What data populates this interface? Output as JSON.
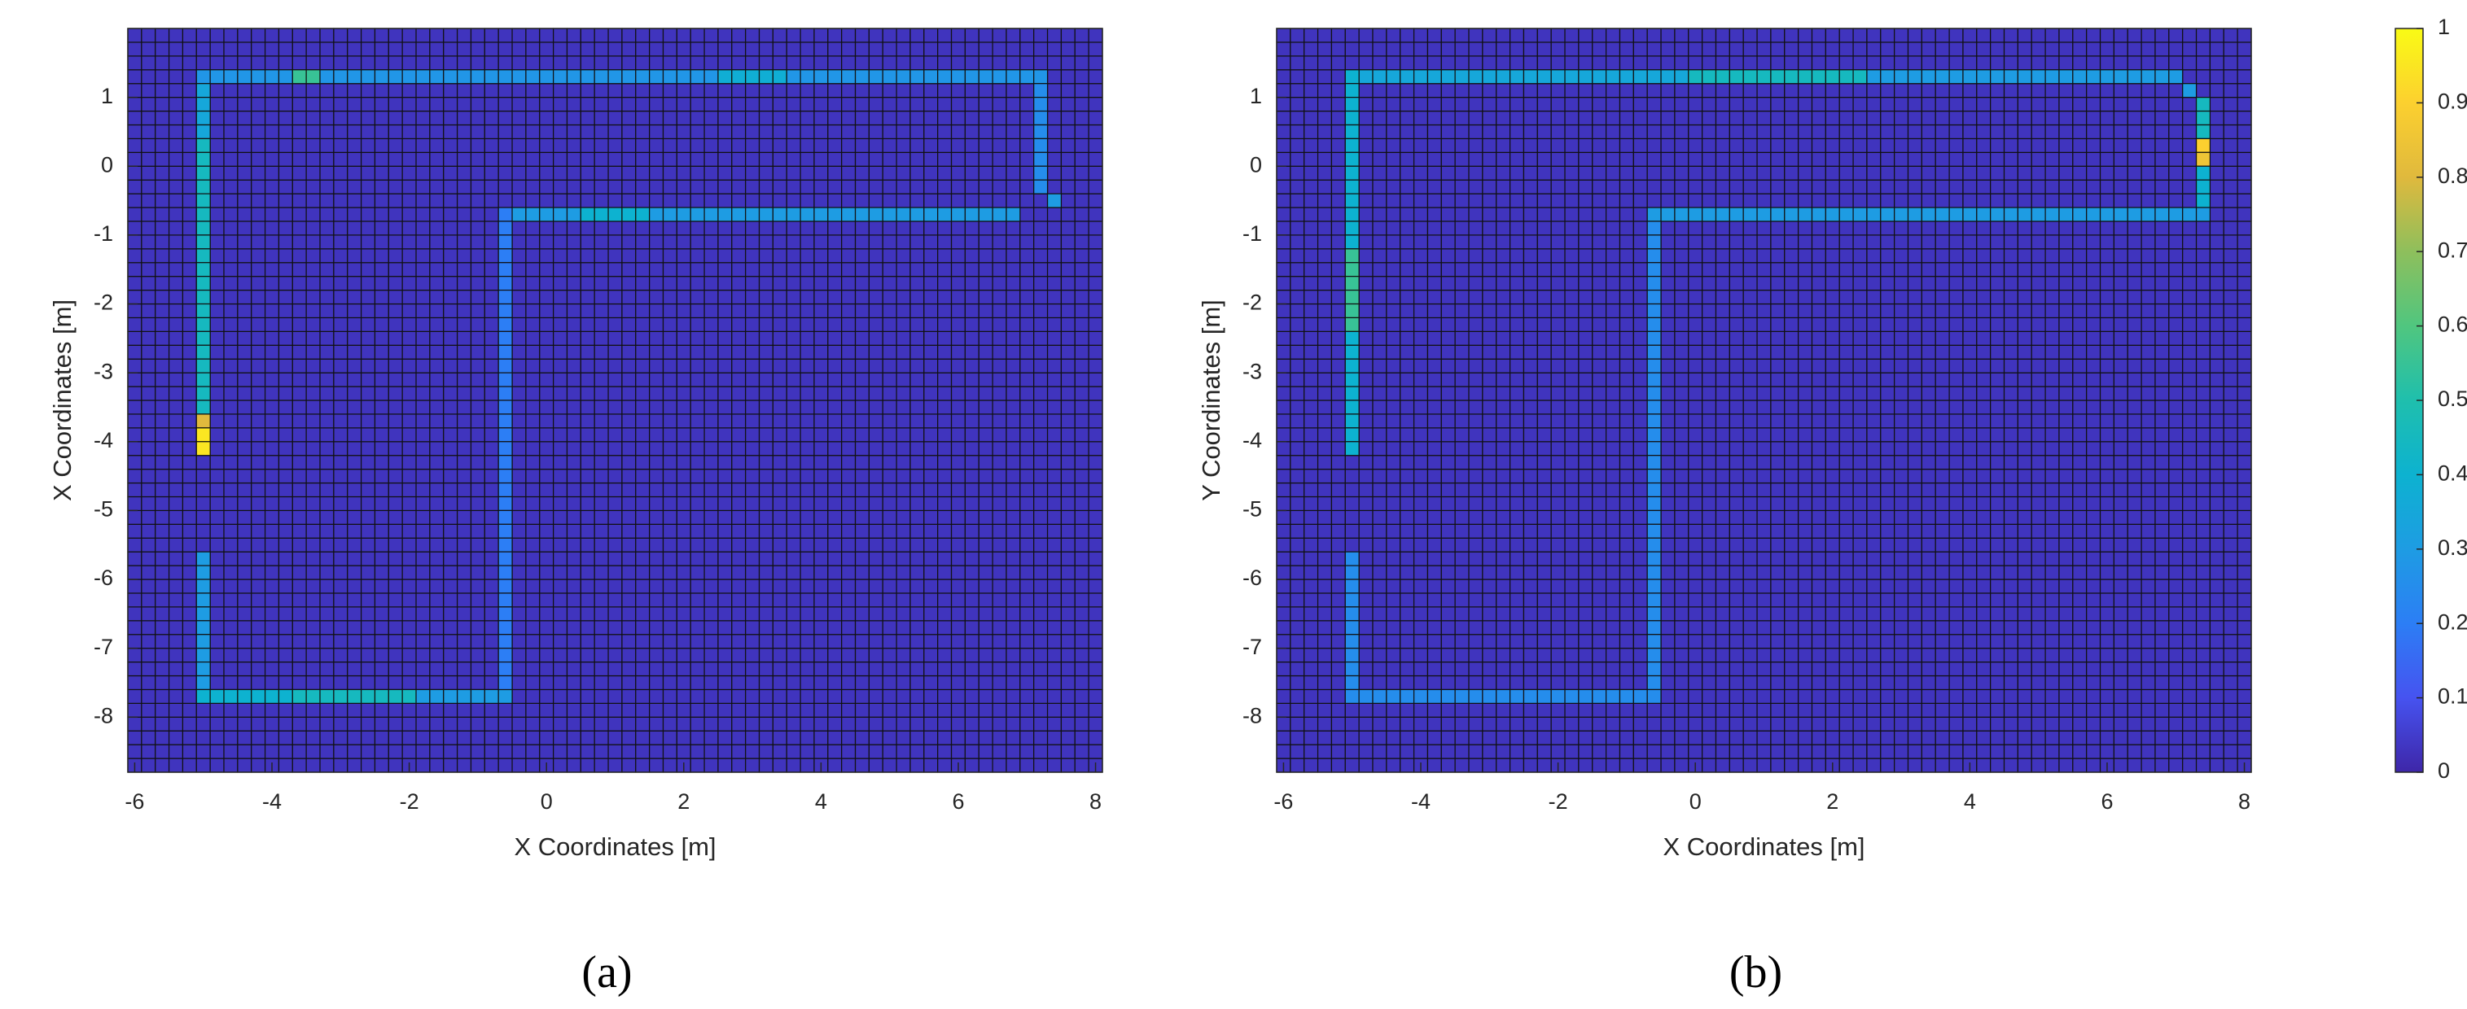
{
  "chart_data": [
    {
      "type": "heatmap",
      "caption": "(a)",
      "x_label": "X Coordinates [m]",
      "y_label": "X Coordinates [m]",
      "xlim": [
        -6.1,
        8.1
      ],
      "ylim": [
        -8.8,
        2.0
      ],
      "xticks": [
        -6,
        -4,
        -2,
        0,
        2,
        4,
        6,
        8
      ],
      "yticks": [
        1,
        0,
        -1,
        -2,
        -3,
        -4,
        -5,
        -6,
        -7,
        -8
      ],
      "cell_size": 0.2,
      "fill_value": 0.03,
      "segments": [
        {
          "x": [
            -5,
            -3.8
          ],
          "y": [
            1.3,
            1.3
          ],
          "value": 0.28
        },
        {
          "x": [
            -3.6,
            -3.4
          ],
          "y": [
            1.3,
            1.3
          ],
          "value": 0.55
        },
        {
          "x": [
            -3.2,
            2.4
          ],
          "y": [
            1.3,
            1.3
          ],
          "value": 0.28
        },
        {
          "x": [
            2.6,
            3.4
          ],
          "y": [
            1.3,
            1.3
          ],
          "value": 0.38
        },
        {
          "x": [
            3.6,
            7.2
          ],
          "y": [
            1.3,
            1.3
          ],
          "value": 0.28
        },
        {
          "x": [
            -5,
            -5
          ],
          "y": [
            1.1,
            0.5
          ],
          "value": 0.35
        },
        {
          "x": [
            -5,
            -5
          ],
          "y": [
            0.3,
            -3.5
          ],
          "value": 0.45
        },
        {
          "x": [
            -5,
            -5
          ],
          "y": [
            -3.7,
            -3.7
          ],
          "value": 0.8
        },
        {
          "x": [
            -5,
            -5
          ],
          "y": [
            -3.9,
            -4.1
          ],
          "value": 0.95
        },
        {
          "x": [
            -5,
            -5
          ],
          "y": [
            -5.7,
            -7.5
          ],
          "value": 0.3
        },
        {
          "x": [
            -5,
            -3.8
          ],
          "y": [
            -7.7,
            -7.7
          ],
          "value": 0.4
        },
        {
          "x": [
            -3.6,
            -2.0
          ],
          "y": [
            -7.7,
            -7.7
          ],
          "value": 0.45
        },
        {
          "x": [
            -1.8,
            -0.6
          ],
          "y": [
            -7.7,
            -7.7
          ],
          "value": 0.3
        },
        {
          "x": [
            -0.6,
            -0.6
          ],
          "y": [
            -0.7,
            -7.5
          ],
          "value": 0.2
        },
        {
          "x": [
            -0.4,
            0.4
          ],
          "y": [
            -0.7,
            -0.7
          ],
          "value": 0.3
        },
        {
          "x": [
            0.6,
            1.4
          ],
          "y": [
            -0.7,
            -0.7
          ],
          "value": 0.4
        },
        {
          "x": [
            1.6,
            6.8
          ],
          "y": [
            -0.7,
            -0.7
          ],
          "value": 0.3
        },
        {
          "x": [
            7.2,
            7.2
          ],
          "y": [
            1.1,
            -0.3
          ],
          "value": 0.25
        },
        {
          "x": [
            7.4,
            7.4
          ],
          "y": [
            -0.5,
            -0.5
          ],
          "value": 0.3
        }
      ]
    },
    {
      "type": "heatmap",
      "caption": "(b)",
      "x_label": "X Coordinates [m]",
      "y_label": "Y Coordinates [m]",
      "xlim": [
        -6.1,
        8.1
      ],
      "ylim": [
        -8.8,
        2.0
      ],
      "xticks": [
        -6,
        -4,
        -2,
        0,
        2,
        4,
        6,
        8
      ],
      "yticks": [
        1,
        0,
        -1,
        -2,
        -3,
        -4,
        -5,
        -6,
        -7,
        -8
      ],
      "cell_size": 0.2,
      "fill_value": 0.03,
      "segments": [
        {
          "x": [
            -5,
            -0.2
          ],
          "y": [
            1.3,
            1.3
          ],
          "value": 0.35
        },
        {
          "x": [
            0,
            2.4
          ],
          "y": [
            1.3,
            1.3
          ],
          "value": 0.45
        },
        {
          "x": [
            2.6,
            7.0
          ],
          "y": [
            1.3,
            1.3
          ],
          "value": 0.3
        },
        {
          "x": [
            7.2,
            7.2
          ],
          "y": [
            1.1,
            1.1
          ],
          "value": 0.3
        },
        {
          "x": [
            7.4,
            7.4
          ],
          "y": [
            0.9,
            0.5
          ],
          "value": 0.45
        },
        {
          "x": [
            7.4,
            7.4
          ],
          "y": [
            0.3,
            0.3
          ],
          "value": 0.9
        },
        {
          "x": [
            7.4,
            7.4
          ],
          "y": [
            0.1,
            0.1
          ],
          "value": 0.85
        },
        {
          "x": [
            7.4,
            7.4
          ],
          "y": [
            -0.1,
            -0.5
          ],
          "value": 0.4
        },
        {
          "x": [
            -0.6,
            7.4
          ],
          "y": [
            -0.7,
            -0.7
          ],
          "value": 0.3
        },
        {
          "x": [
            -0.6,
            -0.6
          ],
          "y": [
            -0.9,
            -7.5
          ],
          "value": 0.25
        },
        {
          "x": [
            -5,
            -5
          ],
          "y": [
            1.3,
            -1.1
          ],
          "value": 0.4
        },
        {
          "x": [
            -5,
            -5
          ],
          "y": [
            -1.3,
            -2.3
          ],
          "value": 0.55
        },
        {
          "x": [
            -5,
            -5
          ],
          "y": [
            -2.5,
            -4.1
          ],
          "value": 0.4
        },
        {
          "x": [
            -5,
            -5
          ],
          "y": [
            -5.7,
            -7.5
          ],
          "value": 0.25
        },
        {
          "x": [
            -5,
            -0.6
          ],
          "y": [
            -7.7,
            -7.7
          ],
          "value": 0.25
        }
      ]
    }
  ],
  "colorbar": {
    "lim": [
      0,
      1
    ],
    "ticks": [
      0,
      0.1,
      0.2,
      0.3,
      0.4,
      0.5,
      0.6,
      0.7,
      0.8,
      0.9,
      1
    ],
    "colors": [
      "#3e26a8",
      "#4653f0",
      "#2c7ef5",
      "#1e9ce3",
      "#0db2d0",
      "#1fbfad",
      "#50c67f",
      "#8ebf5c",
      "#e0b93d",
      "#fcd02f",
      "#f9fb15"
    ]
  }
}
